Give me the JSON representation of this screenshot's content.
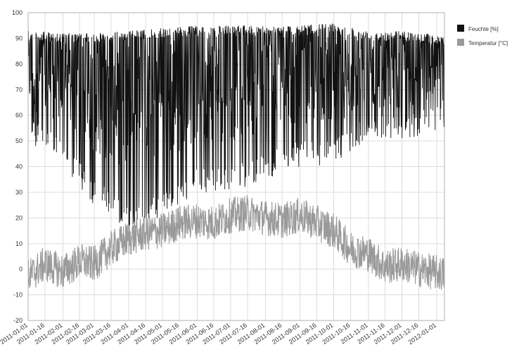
{
  "chart_data": {
    "type": "line",
    "title": "",
    "xlabel": "",
    "ylabel": "",
    "ylim": [
      -20,
      100
    ],
    "yticks": [
      -20,
      -10,
      0,
      10,
      20,
      30,
      40,
      50,
      60,
      70,
      80,
      90,
      100
    ],
    "x_range": [
      "2011-01-01",
      "2012-01-08"
    ],
    "x_ticks": [
      "2011-01-01",
      "2011-01-16",
      "2011-02-01",
      "2011-02-16",
      "2011-03-01",
      "2011-03-16",
      "2011-04-01",
      "2011-04-16",
      "2011-05-01",
      "2011-05-16",
      "2011-06-01",
      "2011-06-16",
      "2011-07-01",
      "2011-07-16",
      "2011-08-01",
      "2011-08-16",
      "2011-09-01",
      "2011-09-16",
      "2011-10-01",
      "2011-10-16",
      "2011-11-01",
      "2011-11-16",
      "2011-12-01",
      "2011-12-16",
      "2012-01-01"
    ],
    "grid": true,
    "legend_position": "top-right",
    "series": [
      {
        "name": "Feuchte [%]",
        "color": "#111111",
        "upper_envelope": {
          "x": [
            "2011-01-01",
            "2011-02-01",
            "2011-03-01",
            "2011-04-01",
            "2011-05-01",
            "2011-06-01",
            "2011-07-01",
            "2011-08-01",
            "2011-09-01",
            "2011-10-01",
            "2011-11-01",
            "2011-12-01",
            "2012-01-08"
          ],
          "y": [
            93,
            92,
            92,
            93,
            94,
            95,
            95,
            95,
            95,
            96,
            93,
            93,
            91
          ]
        },
        "lower_envelope": {
          "x": [
            "2011-01-01",
            "2011-02-01",
            "2011-03-01",
            "2011-04-01",
            "2011-05-01",
            "2011-06-01",
            "2011-07-01",
            "2011-08-01",
            "2011-09-01",
            "2011-10-01",
            "2011-11-01",
            "2011-12-01",
            "2012-01-08"
          ],
          "y": [
            50,
            40,
            25,
            15,
            20,
            30,
            30,
            35,
            40,
            40,
            50,
            50,
            55
          ]
        }
      },
      {
        "name": "Temperatur [°C]",
        "color": "#9a9a9a",
        "center_line": {
          "x": [
            "2011-01-01",
            "2011-01-16",
            "2011-02-01",
            "2011-02-16",
            "2011-03-01",
            "2011-03-16",
            "2011-04-01",
            "2011-04-16",
            "2011-05-01",
            "2011-05-16",
            "2011-06-01",
            "2011-06-16",
            "2011-07-01",
            "2011-07-16",
            "2011-08-01",
            "2011-08-16",
            "2011-09-01",
            "2011-09-16",
            "2011-10-01",
            "2011-10-16",
            "2011-11-01",
            "2011-11-16",
            "2011-12-01",
            "2011-12-16",
            "2012-01-08"
          ],
          "y": [
            -3,
            2,
            -1,
            3,
            2,
            8,
            12,
            14,
            15,
            18,
            19,
            18,
            21,
            22,
            20,
            19,
            21,
            18,
            15,
            8,
            6,
            1,
            2,
            0,
            -2
          ]
        }
      }
    ]
  }
}
